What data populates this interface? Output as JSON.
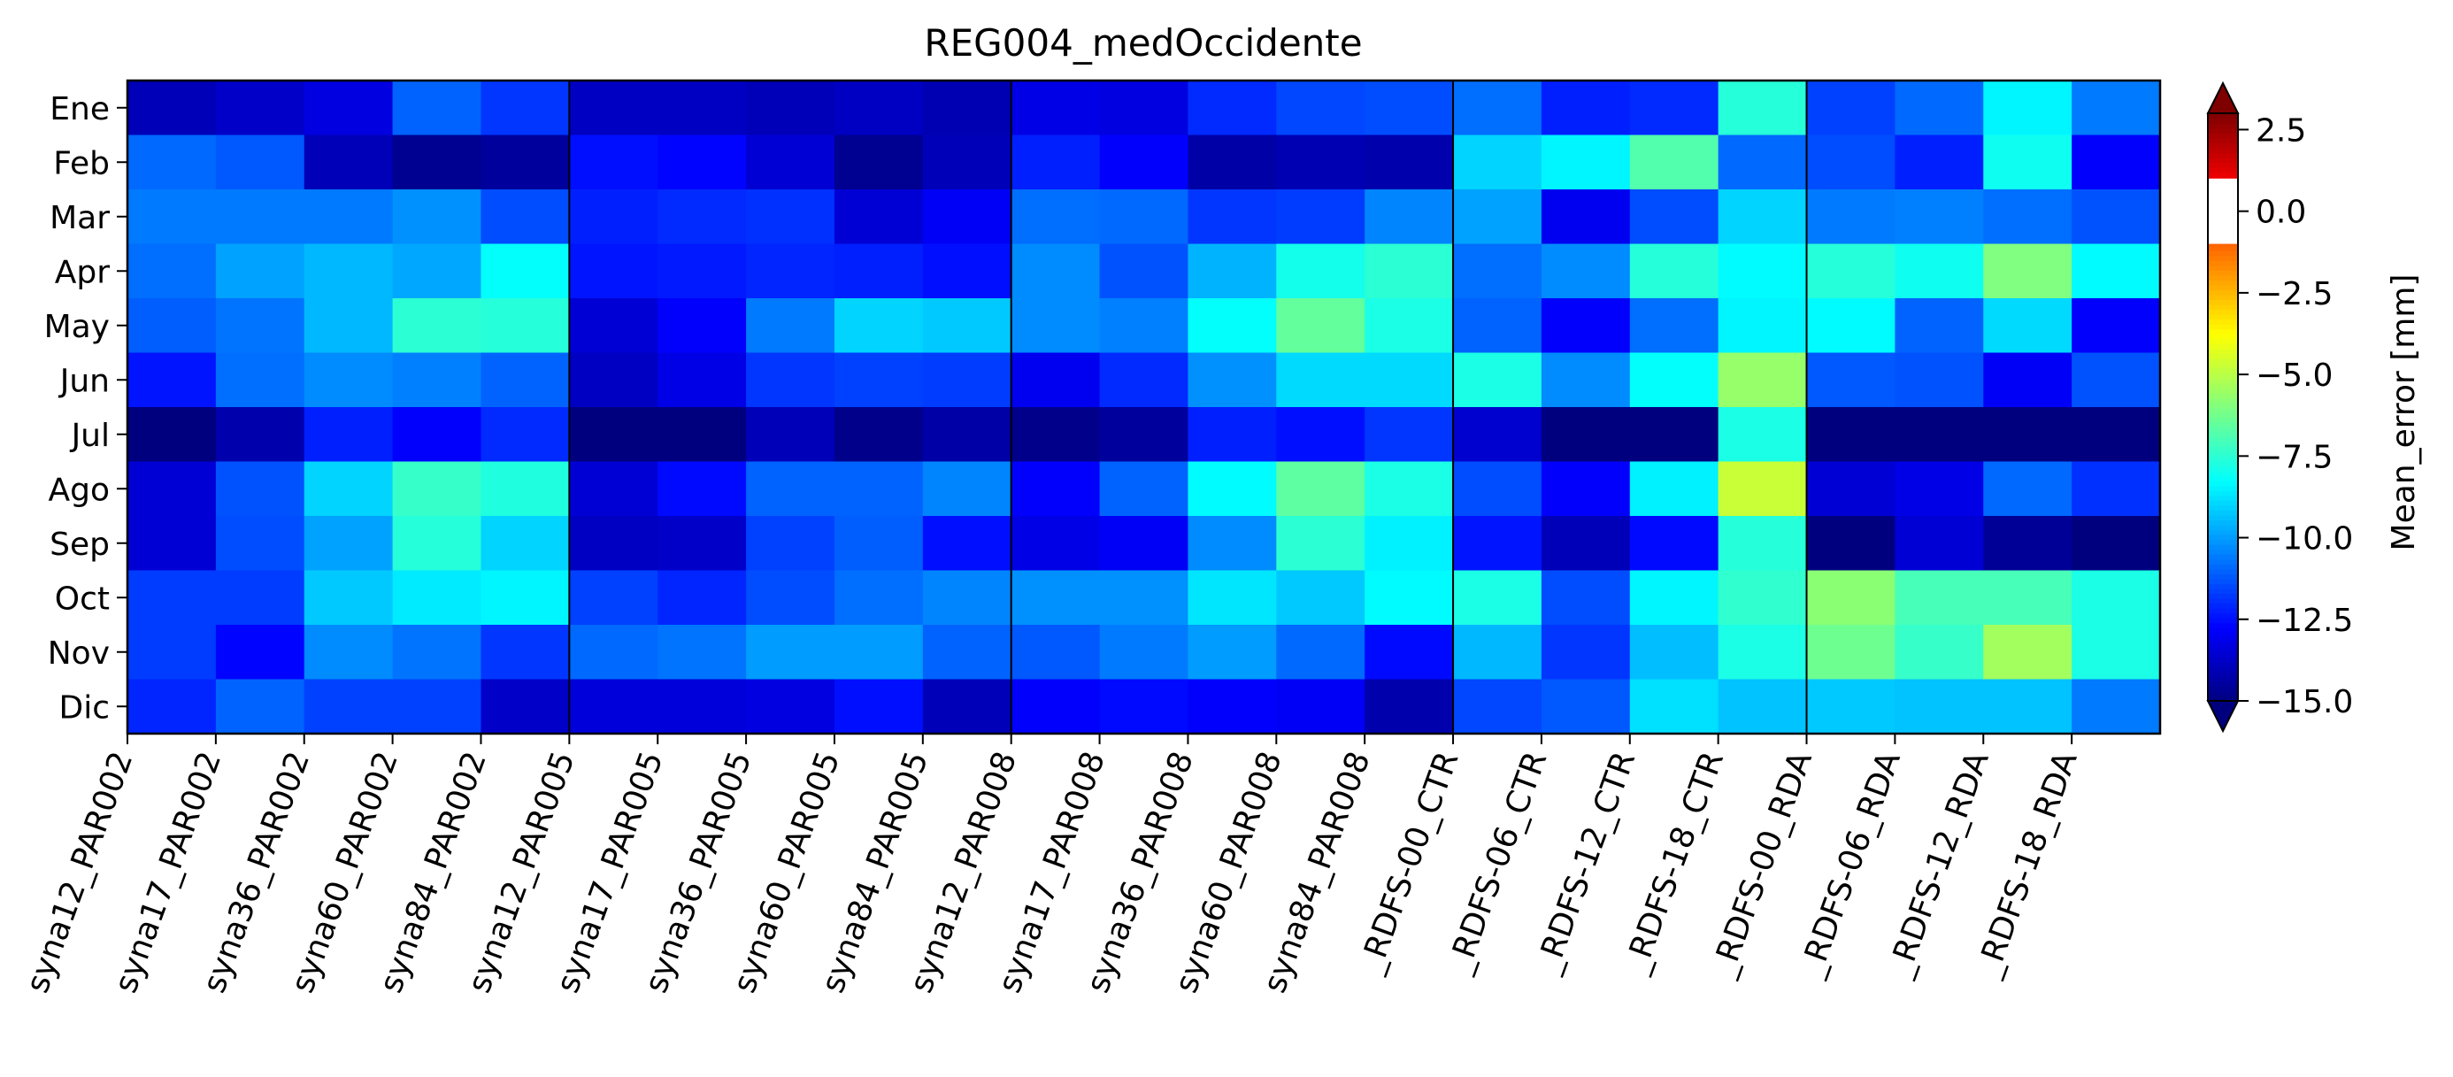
{
  "chart_data": {
    "type": "heatmap",
    "title": "REG004_medOccidente",
    "colorbar_label": "Mean_error [mm]",
    "colormap": "jet",
    "colorbar_extend": "both",
    "colorbar_ticks": [
      2.5,
      0.0,
      -2.5,
      -5.0,
      -7.5,
      -10.0,
      -12.5,
      -15.0
    ],
    "colorbar_tick_labels": [
      "2.5",
      "0.0",
      "−2.5",
      "−5.0",
      "−7.5",
      "−10.0",
      "−12.5",
      "−15.0"
    ],
    "vmin": -15.0,
    "vmax": 3.0,
    "over_color": "#7f0000",
    "under_color": "#00007f",
    "group_separators_after_column": [
      4,
      9,
      14,
      18
    ],
    "rows": [
      "Ene",
      "Feb",
      "Mar",
      "Apr",
      "May",
      "Jun",
      "Jul",
      "Ago",
      "Sep",
      "Oct",
      "Nov",
      "Dic"
    ],
    "columns": [
      "syna12_PAR002",
      "syna17_PAR002",
      "syna36_PAR002",
      "syna60_PAR002",
      "syna84_PAR002",
      "syna12_PAR005",
      "syna17_PAR005",
      "syna36_PAR005",
      "syna60_PAR005",
      "syna84_PAR005",
      "syna12_PAR008",
      "syna17_PAR008",
      "syna36_PAR008",
      "syna60_PAR008",
      "syna84_PAR008",
      "_RDFS-00_CTR",
      "_RDFS-06_CTR",
      "_RDFS-12_CTR",
      "_RDFS-18_CTR",
      "_RDFS-00_RDA",
      "_RDFS-06_RDA",
      "_RDFS-12_RDA",
      "_RDFS-18_RDA"
    ],
    "values": [
      [
        -14.0,
        -13.7,
        -13.3,
        -11.0,
        -11.8,
        -13.8,
        -13.8,
        -14.0,
        -13.8,
        -14.1,
        -13.2,
        -13.3,
        -12.0,
        -11.5,
        -11.4,
        -10.8,
        -12.2,
        -12.0,
        -7.6,
        -11.6,
        -10.9,
        -8.4,
        -10.6
      ],
      [
        -10.9,
        -11.2,
        -14.0,
        -14.7,
        -14.5,
        -12.5,
        -12.7,
        -13.5,
        -14.7,
        -14.0,
        -12.2,
        -12.8,
        -14.3,
        -14.1,
        -14.2,
        -9.0,
        -8.4,
        -6.8,
        -10.9,
        -11.4,
        -12.2,
        -8.0,
        -12.8
      ],
      [
        -10.6,
        -10.6,
        -10.6,
        -10.2,
        -11.4,
        -12.2,
        -12.0,
        -11.9,
        -13.5,
        -12.9,
        -10.8,
        -10.9,
        -11.8,
        -11.7,
        -10.4,
        -9.9,
        -13.0,
        -11.4,
        -9.0,
        -10.6,
        -10.5,
        -10.8,
        -11.3
      ],
      [
        -10.8,
        -9.9,
        -9.5,
        -9.8,
        -8.2,
        -12.4,
        -12.3,
        -12.1,
        -12.2,
        -12.5,
        -10.3,
        -11.3,
        -9.6,
        -7.9,
        -7.5,
        -10.8,
        -10.3,
        -7.6,
        -8.3,
        -7.6,
        -8.0,
        -6.0,
        -8.3
      ],
      [
        -11.1,
        -10.7,
        -9.5,
        -7.5,
        -7.6,
        -13.5,
        -12.8,
        -10.6,
        -9.0,
        -9.2,
        -10.3,
        -10.5,
        -8.2,
        -6.5,
        -7.8,
        -11.0,
        -12.8,
        -10.8,
        -8.4,
        -8.3,
        -11.0,
        -8.9,
        -12.8
      ],
      [
        -12.4,
        -10.8,
        -10.3,
        -10.5,
        -11.0,
        -13.8,
        -13.2,
        -11.8,
        -11.6,
        -11.7,
        -13.0,
        -12.0,
        -10.2,
        -8.9,
        -8.9,
        -7.8,
        -10.3,
        -8.2,
        -5.6,
        -11.2,
        -11.3,
        -12.9,
        -11.3
      ],
      [
        -15.2,
        -14.2,
        -12.2,
        -12.8,
        -12.0,
        -15.3,
        -15.3,
        -14.0,
        -14.8,
        -14.3,
        -14.8,
        -14.5,
        -12.2,
        -12.5,
        -11.8,
        -13.6,
        -15.2,
        -15.2,
        -7.8,
        -15.2,
        -15.2,
        -15.2,
        -15.2
      ],
      [
        -13.5,
        -11.3,
        -9.0,
        -7.3,
        -7.7,
        -13.5,
        -12.6,
        -11.0,
        -11.0,
        -10.4,
        -12.8,
        -11.0,
        -8.3,
        -6.6,
        -7.8,
        -11.4,
        -12.8,
        -8.5,
        -4.7,
        -13.5,
        -13.2,
        -10.9,
        -11.9
      ],
      [
        -13.5,
        -11.4,
        -9.9,
        -7.6,
        -9.0,
        -13.8,
        -13.7,
        -11.6,
        -11.1,
        -12.5,
        -13.2,
        -12.9,
        -10.3,
        -7.5,
        -8.5,
        -12.4,
        -14.0,
        -12.6,
        -7.6,
        -15.3,
        -13.5,
        -14.6,
        -15.3
      ],
      [
        -11.7,
        -11.7,
        -9.2,
        -8.6,
        -8.4,
        -11.6,
        -12.1,
        -11.4,
        -10.8,
        -10.4,
        -10.2,
        -10.2,
        -8.7,
        -9.2,
        -8.3,
        -7.8,
        -11.4,
        -8.4,
        -7.4,
        -5.8,
        -7.0,
        -7.0,
        -7.8
      ],
      [
        -11.7,
        -12.7,
        -10.3,
        -10.7,
        -11.8,
        -10.9,
        -10.7,
        -10.0,
        -10.0,
        -11.0,
        -11.2,
        -10.6,
        -10.0,
        -10.9,
        -12.6,
        -9.5,
        -11.8,
        -9.4,
        -7.8,
        -6.3,
        -7.3,
        -5.4,
        -7.8
      ],
      [
        -12.1,
        -11.0,
        -11.6,
        -11.6,
        -13.7,
        -13.4,
        -13.4,
        -13.3,
        -12.5,
        -14.0,
        -12.8,
        -12.6,
        -12.8,
        -12.9,
        -14.2,
        -11.5,
        -11.2,
        -8.8,
        -9.3,
        -9.2,
        -9.3,
        -9.3,
        -10.6
      ]
    ]
  }
}
